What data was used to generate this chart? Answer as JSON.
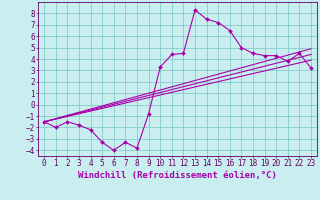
{
  "xlabel": "Windchill (Refroidissement éolien,°C)",
  "bg_color": "#c8eef0",
  "grid_color": "#88cccc",
  "line_color": "#aa00aa",
  "xlim": [
    -0.5,
    23.5
  ],
  "ylim": [
    -4.5,
    9.0
  ],
  "xticks": [
    0,
    1,
    2,
    3,
    4,
    5,
    6,
    7,
    8,
    9,
    10,
    11,
    12,
    13,
    14,
    15,
    16,
    17,
    18,
    19,
    20,
    21,
    22,
    23
  ],
  "yticks": [
    -4,
    -3,
    -2,
    -1,
    0,
    1,
    2,
    3,
    4,
    5,
    6,
    7,
    8
  ],
  "zigzag_x": [
    0,
    1,
    2,
    3,
    4,
    5,
    6,
    7,
    8,
    9,
    10,
    11,
    12,
    13,
    14,
    15,
    16,
    17,
    18,
    19,
    20,
    21,
    22,
    23
  ],
  "zigzag_y": [
    -1.5,
    -2.0,
    -1.5,
    -1.8,
    -2.2,
    -3.3,
    -4.0,
    -3.3,
    -3.8,
    -0.8,
    3.3,
    4.4,
    4.5,
    8.3,
    7.5,
    7.2,
    6.5,
    5.0,
    4.5,
    4.3,
    4.3,
    3.8,
    4.5,
    3.2
  ],
  "line1_x": [
    0,
    23
  ],
  "line1_y": [
    -1.5,
    4.9
  ],
  "line2_x": [
    0,
    23
  ],
  "line2_y": [
    -1.5,
    4.4
  ],
  "line3_x": [
    0,
    23
  ],
  "line3_y": [
    -1.5,
    3.9
  ],
  "axis_color": "#660066",
  "tick_labelsize": 5.5,
  "xlabel_fontsize": 6.5
}
